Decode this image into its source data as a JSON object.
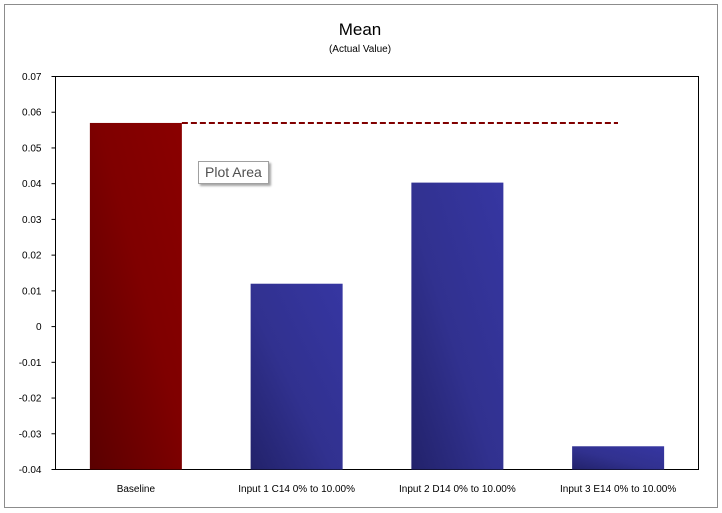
{
  "chart_data": {
    "type": "bar",
    "title": "Mean",
    "subtitle": "(Actual Value)",
    "categories": [
      "Baseline",
      "Input 1 C14 0% to 10.00%",
      "Input 2 D14 0% to 10.00%",
      "Input 3 E14 0% to 10.00%"
    ],
    "values": [
      0.057,
      0.012,
      0.0403,
      -0.0335
    ],
    "ylim": [
      -0.04,
      0.07
    ],
    "yticks": [
      0.07,
      0.06,
      0.05,
      0.04,
      0.03,
      0.02,
      0.01,
      0,
      -0.01,
      -0.02,
      -0.03,
      -0.04
    ],
    "ytick_labels": [
      "0.07",
      "0.06",
      "0.05",
      "0.04",
      "0.03",
      "0.02",
      "0.01",
      "0",
      "-0.01",
      "-0.02",
      "-0.03",
      "-0.04"
    ],
    "baseline_reference_value": 0.057,
    "colors": {
      "baseline_bar": "#7a0000",
      "input_bars": "#333399",
      "reference_line": "#800000"
    },
    "grid": false,
    "legend": "none"
  },
  "tooltip": {
    "label": "Plot Area"
  }
}
